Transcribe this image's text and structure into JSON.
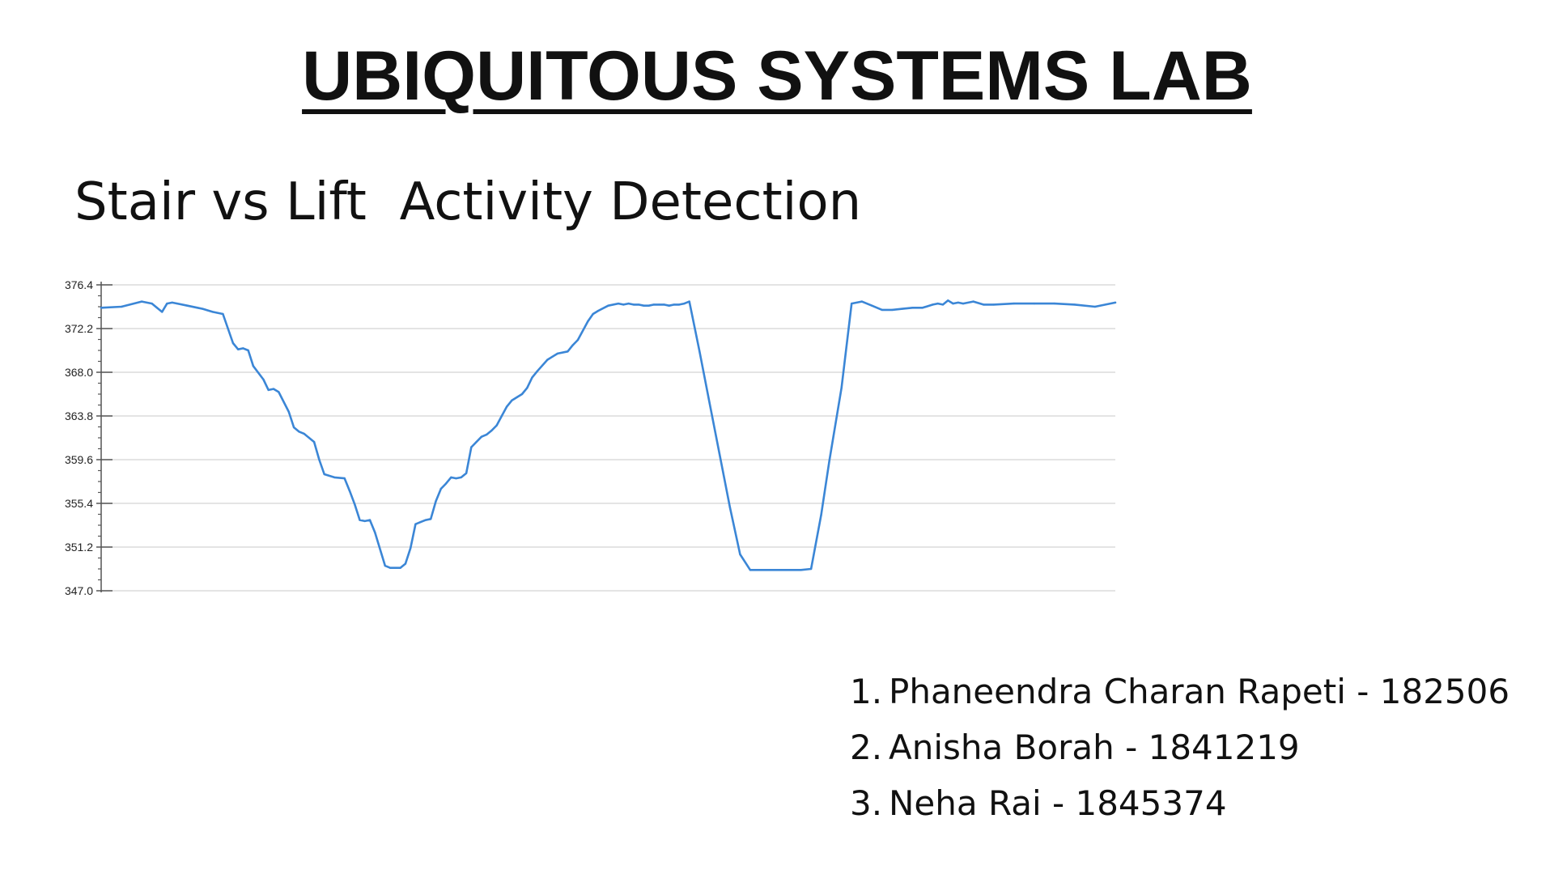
{
  "header": {
    "title": "UBIQUITOUS SYSTEMS LAB",
    "subtitle": "Stair vs Lift  Activity Detection"
  },
  "chart_data": {
    "type": "line",
    "title": "",
    "xlabel": "",
    "ylabel": "",
    "ylim": [
      347.0,
      376.4
    ],
    "yticks": [
      "347.0",
      "351.2",
      "355.4",
      "359.6",
      "363.8",
      "368.0",
      "372.2",
      "376.4"
    ],
    "grid": true,
    "x_range": [
      0,
      1000
    ],
    "series": [
      {
        "color": "#3b86d6",
        "x": [
          0,
          20,
          40,
          50,
          55,
          60,
          65,
          70,
          75,
          85,
          95,
          100,
          110,
          120,
          130,
          135,
          140,
          145,
          150,
          160,
          165,
          170,
          175,
          185,
          190,
          195,
          200,
          210,
          215,
          220,
          230,
          240,
          245,
          250,
          255,
          260,
          265,
          270,
          280,
          285,
          290,
          295,
          300,
          305,
          310,
          315,
          320,
          325,
          330,
          335,
          340,
          345,
          350,
          355,
          360,
          365,
          370,
          375,
          380,
          385,
          390,
          395,
          400,
          405,
          410,
          415,
          420,
          425,
          430,
          440,
          445,
          450,
          460,
          465,
          470,
          480,
          485,
          490,
          500,
          510,
          515,
          520,
          525,
          530,
          535,
          540,
          545,
          550,
          555,
          560,
          565,
          570,
          575,
          580,
          590,
          600,
          620,
          630,
          640,
          650,
          660,
          670,
          675,
          680,
          690,
          700,
          710,
          718,
          730,
          740,
          750,
          760,
          770,
          780,
          790,
          800,
          810,
          820,
          825,
          830,
          835,
          840,
          845,
          850,
          860,
          870,
          880,
          900,
          920,
          940,
          960,
          980,
          1000
        ],
        "values": [
          374.2,
          374.3,
          374.8,
          374.6,
          374.2,
          373.8,
          374.6,
          374.7,
          374.6,
          374.4,
          374.2,
          374.1,
          373.8,
          373.6,
          370.8,
          370.2,
          370.3,
          370.1,
          368.6,
          367.3,
          366.3,
          366.4,
          366.1,
          364.2,
          362.7,
          362.3,
          362.1,
          361.3,
          359.6,
          358.2,
          357.9,
          357.8,
          356.6,
          355.3,
          353.8,
          353.7,
          353.8,
          352.6,
          349.4,
          349.2,
          349.2,
          349.2,
          349.6,
          351.1,
          353.4,
          353.6,
          353.8,
          353.9,
          355.6,
          356.8,
          357.3,
          357.9,
          357.8,
          357.9,
          358.3,
          360.8,
          361.3,
          361.8,
          362.0,
          362.4,
          362.9,
          363.8,
          364.7,
          365.3,
          365.6,
          365.9,
          366.5,
          367.5,
          368.1,
          369.2,
          369.5,
          369.8,
          370.0,
          370.6,
          371.1,
          372.9,
          373.6,
          373.9,
          374.4,
          374.6,
          374.5,
          374.6,
          374.5,
          374.5,
          374.4,
          374.4,
          374.5,
          374.5,
          374.5,
          374.4,
          374.5,
          374.5,
          374.6,
          374.8,
          370.0,
          365.0,
          355.0,
          350.5,
          349.0,
          349.0,
          349.0,
          349.0,
          349.0,
          349.0,
          349.0,
          349.1,
          354.3,
          359.5,
          366.5,
          374.6,
          374.8,
          374.4,
          374.0,
          374.0,
          374.1,
          374.2,
          374.2,
          374.5,
          374.6,
          374.5,
          374.9,
          374.6,
          374.7,
          374.6,
          374.8,
          374.5,
          374.5,
          374.6,
          374.6,
          374.6,
          374.5,
          374.3,
          374.7
        ]
      }
    ]
  },
  "members": [
    {
      "number": "1.",
      "text": "Phaneendra Charan Rapeti - 182506"
    },
    {
      "number": "2.",
      "text": "Anisha Borah - 1841219"
    },
    {
      "number": "3.",
      "text": "Neha Rai - 1845374"
    }
  ]
}
